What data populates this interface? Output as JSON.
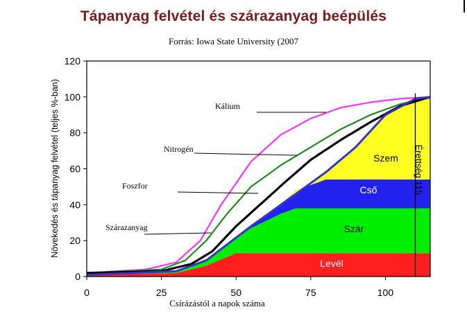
{
  "header": {
    "title": "Tápanyag felvétel és szárazanyag beépülés",
    "subtitle": "Forrás: Iowa State University (2007"
  },
  "chart_data": {
    "type": "area",
    "title": "Tápanyag felvétel és szárazanyag beépülés",
    "subtitle": "Forrás: Iowa State University (2007",
    "xlabel": "Csírázástól a napok száma",
    "ylabel": "Növekedés és tápanyag felvétel (teljes %-ban)",
    "xlim": [
      0,
      115
    ],
    "ylim": [
      0,
      120
    ],
    "xticks": [
      0,
      25,
      50,
      75,
      100
    ],
    "yticks": [
      0,
      20,
      40,
      60,
      80,
      100,
      120
    ],
    "grid": false,
    "bands": [
      {
        "name": "Levél",
        "color": "#ff1f1f",
        "label_color": "#ffffff",
        "lower": [
          [
            0,
            1
          ],
          [
            30,
            2
          ],
          [
            40,
            6
          ],
          [
            50,
            13
          ],
          [
            115,
            13
          ]
        ],
        "upper": [
          [
            0,
            1
          ],
          [
            30,
            2
          ],
          [
            40,
            6
          ],
          [
            50,
            13
          ],
          [
            115,
            13
          ]
        ],
        "base": 0
      },
      {
        "name": "Szár",
        "color": "#00ee00",
        "label_color": "#000000",
        "upper": [
          [
            0,
            1
          ],
          [
            30,
            3
          ],
          [
            40,
            9
          ],
          [
            55,
            27
          ],
          [
            65,
            35
          ],
          [
            70,
            38
          ],
          [
            115,
            38
          ]
        ]
      },
      {
        "name": "Cső",
        "color": "#2222ee",
        "label_color": "#ffffff",
        "upper": [
          [
            0,
            1
          ],
          [
            30,
            3
          ],
          [
            40,
            9
          ],
          [
            55,
            28
          ],
          [
            65,
            40
          ],
          [
            70,
            48
          ],
          [
            80,
            54
          ],
          [
            115,
            54
          ]
        ]
      },
      {
        "name": "Szem",
        "color": "#ffff22",
        "label_color": "#000000",
        "upper": [
          [
            0,
            1
          ],
          [
            30,
            3
          ],
          [
            40,
            9
          ],
          [
            55,
            28
          ],
          [
            65,
            40
          ],
          [
            80,
            58
          ],
          [
            90,
            72
          ],
          [
            100,
            90
          ],
          [
            110,
            99
          ],
          [
            115,
            100
          ]
        ]
      }
    ],
    "series": [
      {
        "name": "Kálium",
        "color": "#ff33ff",
        "points": [
          [
            0,
            2
          ],
          [
            20,
            4
          ],
          [
            30,
            8
          ],
          [
            38,
            20
          ],
          [
            45,
            40
          ],
          [
            55,
            64
          ],
          [
            65,
            79
          ],
          [
            75,
            88
          ],
          [
            85,
            94
          ],
          [
            95,
            97
          ],
          [
            105,
            99
          ],
          [
            115,
            100
          ]
        ]
      },
      {
        "name": "Nitrogén",
        "color": "#1f8a1f",
        "points": [
          [
            0,
            2
          ],
          [
            25,
            4
          ],
          [
            33,
            9
          ],
          [
            40,
            20
          ],
          [
            47,
            35
          ],
          [
            55,
            50
          ],
          [
            65,
            62
          ],
          [
            75,
            72
          ],
          [
            85,
            82
          ],
          [
            95,
            90
          ],
          [
            105,
            96
          ],
          [
            115,
            100
          ]
        ]
      },
      {
        "name": "Foszfor",
        "color": "#000000",
        "points": [
          [
            0,
            2
          ],
          [
            25,
            3
          ],
          [
            35,
            7
          ],
          [
            42,
            14
          ],
          [
            50,
            28
          ],
          [
            58,
            40
          ],
          [
            66,
            52
          ],
          [
            75,
            65
          ],
          [
            85,
            76
          ],
          [
            95,
            86
          ],
          [
            105,
            95
          ],
          [
            115,
            100
          ]
        ]
      },
      {
        "name": "Szárazanyag",
        "color": "#3333cc",
        "points": [
          [
            0,
            1
          ],
          [
            30,
            3
          ],
          [
            40,
            9
          ],
          [
            55,
            28
          ],
          [
            65,
            40
          ],
          [
            80,
            58
          ],
          [
            90,
            72
          ],
          [
            100,
            90
          ],
          [
            110,
            99
          ],
          [
            115,
            100
          ]
        ]
      }
    ],
    "annotations": [
      {
        "text": "Kálium",
        "series": "Kálium"
      },
      {
        "text": "Nitrogén",
        "series": "Nitrogén"
      },
      {
        "text": "Foszfor",
        "series": "Foszfor"
      },
      {
        "text": "Szárazanyag",
        "series": "Szárazanyag"
      }
    ],
    "maturity": {
      "x": 110,
      "label": "Érettség 115"
    }
  }
}
